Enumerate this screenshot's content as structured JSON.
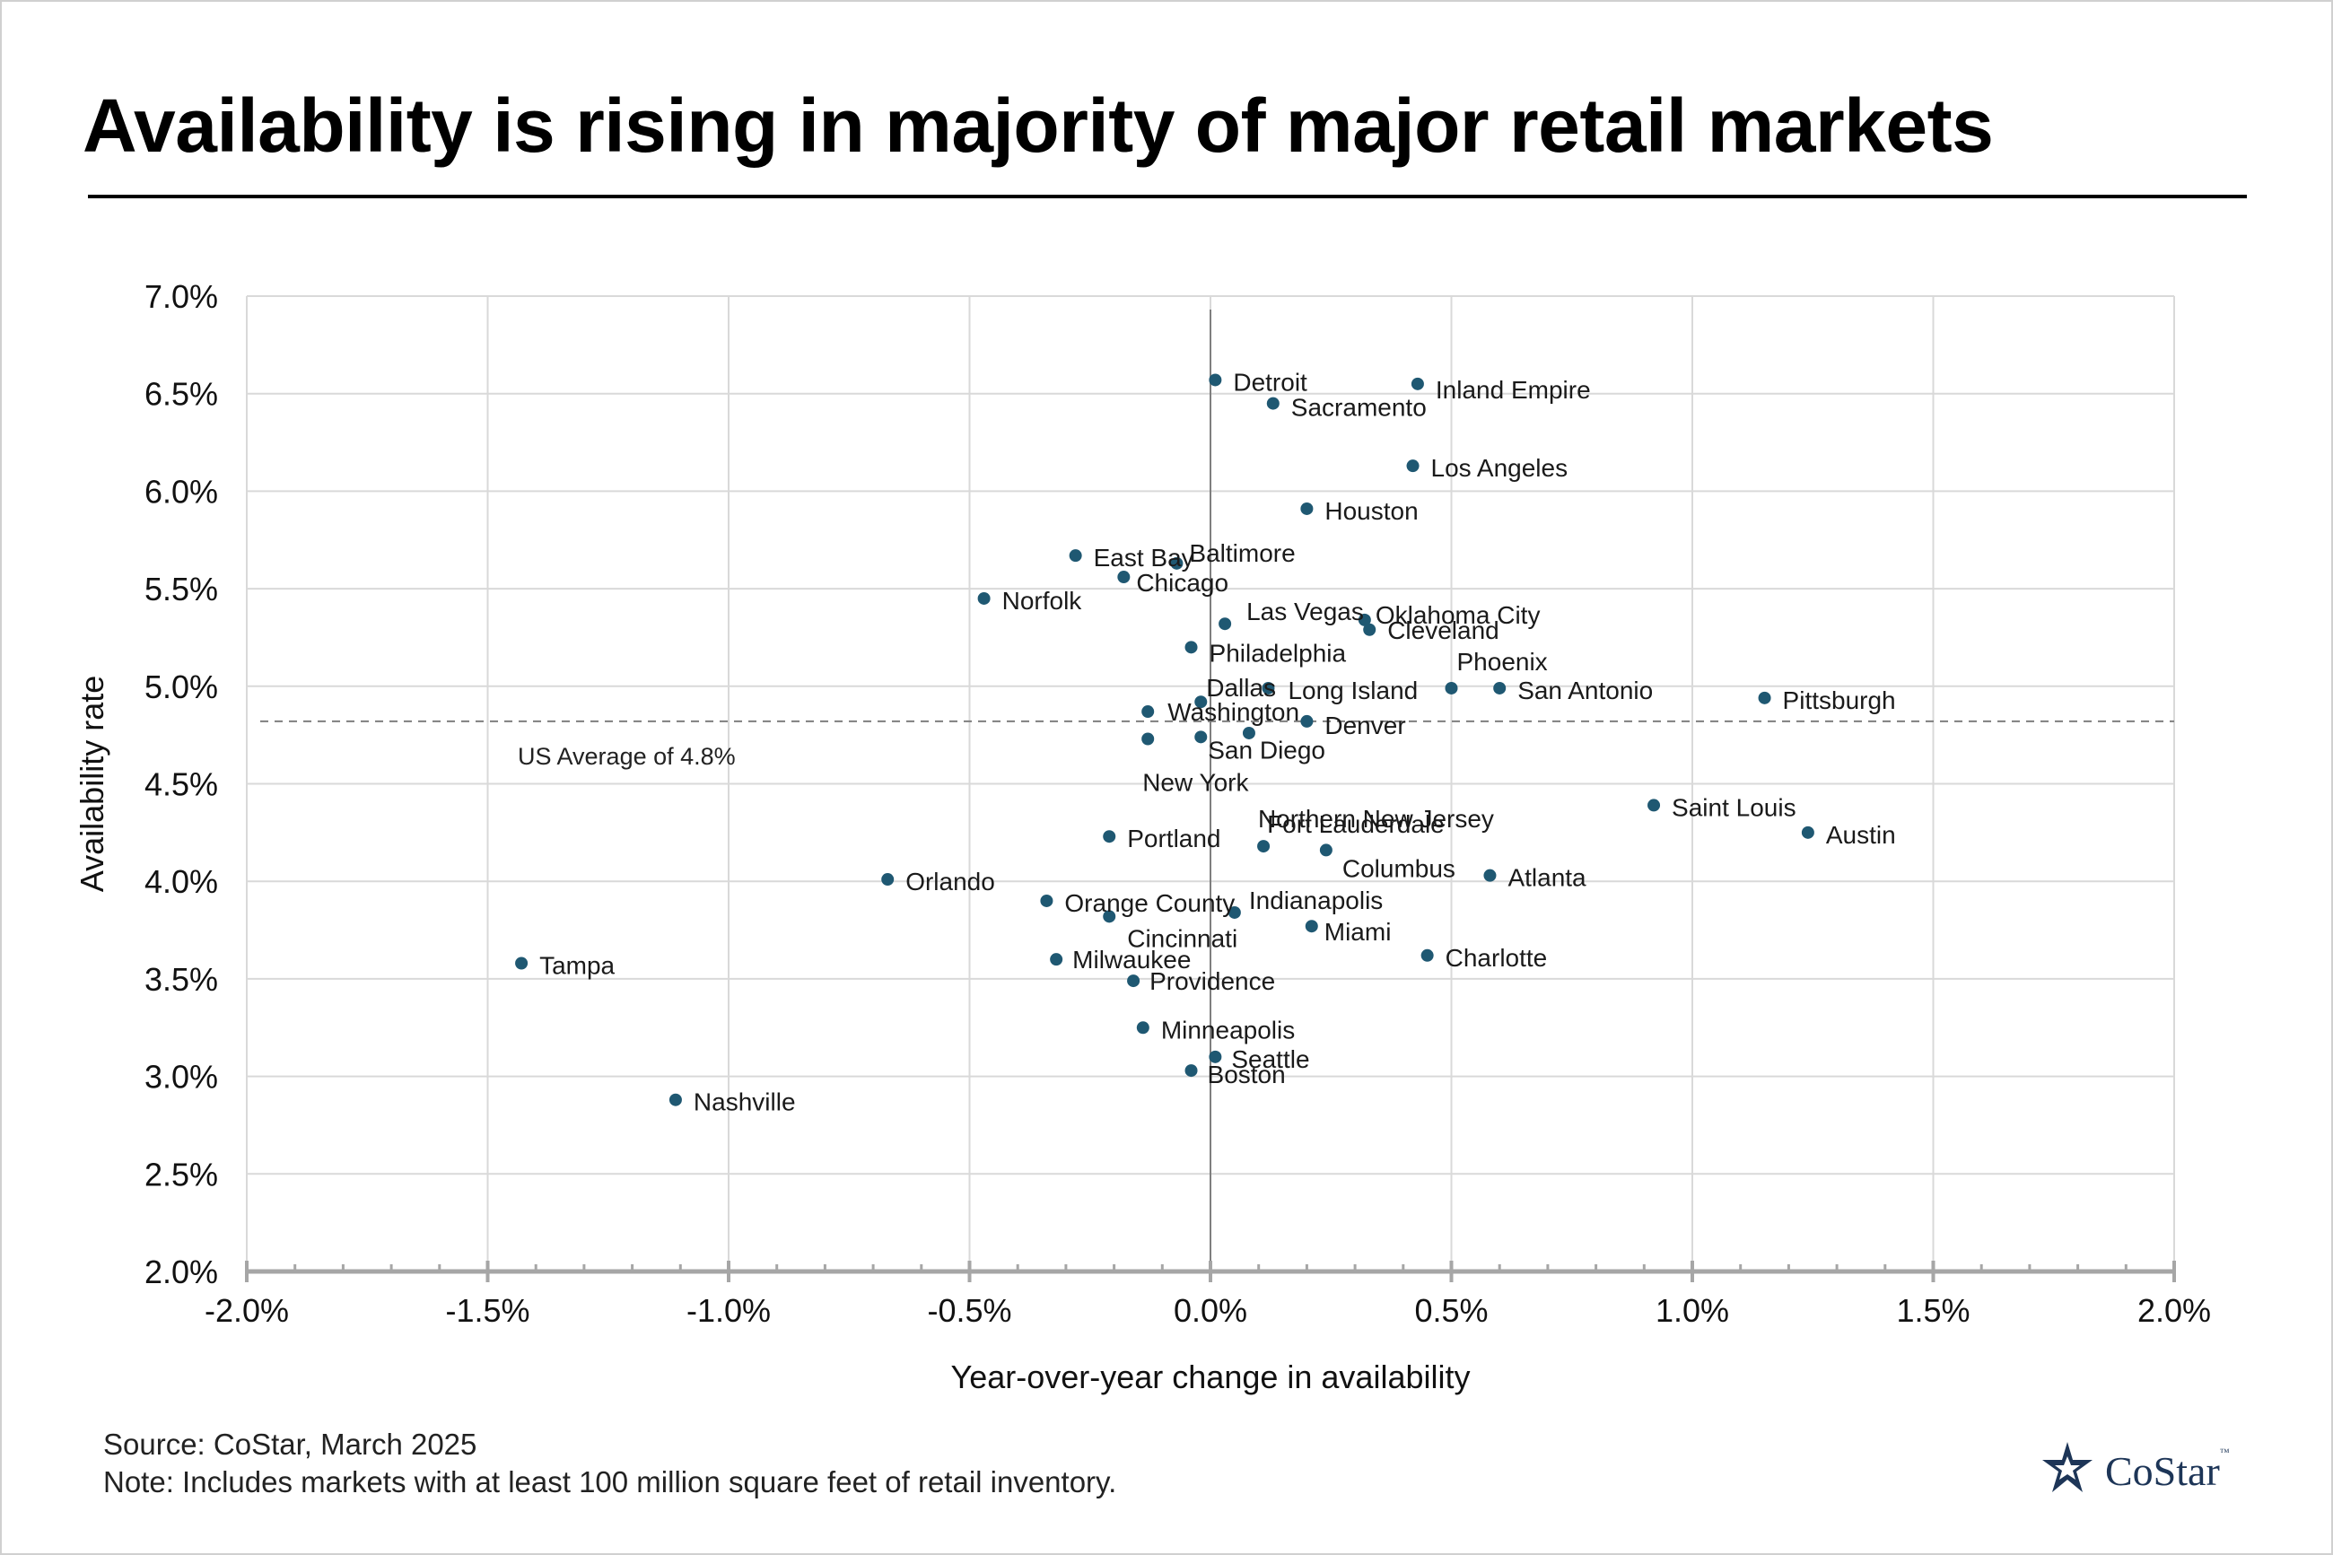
{
  "title": "Availability is rising in majority of major retail markets",
  "source": "Source: CoStar, March 2025",
  "note": "Note: Includes markets with at least 100 million square feet of retail inventory.",
  "logo": {
    "name": "CoStar",
    "tm": "™"
  },
  "colors": {
    "point": "#1f5872",
    "grid": "#d9d9d9",
    "axis": "#a6a6a6",
    "average_line": "#7f7f7f"
  },
  "chart_data": {
    "type": "scatter",
    "title": "Availability is rising in majority of major retail markets",
    "xlabel": "Year-over-year change in availability",
    "ylabel": "Availability rate",
    "xlim": [
      -2.0,
      2.0
    ],
    "ylim": [
      2.0,
      7.0
    ],
    "x_ticks": [
      -2.0,
      -1.5,
      -1.0,
      -0.5,
      0.0,
      0.5,
      1.0,
      1.5,
      2.0
    ],
    "x_tick_labels": [
      "-2.0%",
      "-1.5%",
      "-1.0%",
      "-0.5%",
      "0.0%",
      "0.5%",
      "1.0%",
      "1.5%",
      "2.0%"
    ],
    "y_ticks": [
      2.0,
      2.5,
      3.0,
      3.5,
      4.0,
      4.5,
      5.0,
      5.5,
      6.0,
      6.5,
      7.0
    ],
    "y_tick_labels": [
      "2.0%",
      "2.5%",
      "3.0%",
      "3.5%",
      "4.0%",
      "4.5%",
      "5.0%",
      "5.5%",
      "6.0%",
      "6.5%",
      "7.0%"
    ],
    "grid": true,
    "reference_line": {
      "y": 4.82,
      "label": "US Average of 4.8%"
    },
    "points": [
      {
        "label": "Detroit",
        "x": 0.01,
        "y": 6.57
      },
      {
        "label": "Inland Empire",
        "x": 0.43,
        "y": 6.55
      },
      {
        "label": "Sacramento",
        "x": 0.13,
        "y": 6.45
      },
      {
        "label": "Los Angeles",
        "x": 0.42,
        "y": 6.13
      },
      {
        "label": "Houston",
        "x": 0.2,
        "y": 5.91
      },
      {
        "label": "East Bay",
        "x": -0.28,
        "y": 5.67
      },
      {
        "label": "Baltimore",
        "x": -0.07,
        "y": 5.63
      },
      {
        "label": "Chicago",
        "x": -0.18,
        "y": 5.56
      },
      {
        "label": "Norfolk",
        "x": -0.47,
        "y": 5.45
      },
      {
        "label": "Las Vegas",
        "x": 0.03,
        "y": 5.32
      },
      {
        "label": "Oklahoma City",
        "x": 0.32,
        "y": 5.34
      },
      {
        "label": "Cleveland",
        "x": 0.33,
        "y": 5.29
      },
      {
        "label": "Philadelphia",
        "x": -0.04,
        "y": 5.2
      },
      {
        "label": "Phoenix",
        "x": 0.5,
        "y": 4.99
      },
      {
        "label": "San Antonio",
        "x": 0.6,
        "y": 4.99
      },
      {
        "label": "Pittsburgh",
        "x": 1.15,
        "y": 4.94
      },
      {
        "label": "Long Island",
        "x": 0.12,
        "y": 4.99
      },
      {
        "label": "Dallas",
        "x": -0.02,
        "y": 4.92
      },
      {
        "label": "Washington",
        "x": -0.13,
        "y": 4.87
      },
      {
        "label": "Denver",
        "x": 0.2,
        "y": 4.82
      },
      {
        "label": "New York",
        "x": -0.13,
        "y": 4.73
      },
      {
        "label": "San Diego",
        "x": -0.02,
        "y": 4.74
      },
      {
        "label": "Northern New Jersey",
        "x": 0.08,
        "y": 4.76
      },
      {
        "label": "Saint Louis",
        "x": 0.92,
        "y": 4.39
      },
      {
        "label": "Austin",
        "x": 1.24,
        "y": 4.25
      },
      {
        "label": "Portland",
        "x": -0.21,
        "y": 4.23
      },
      {
        "label": "Fort Lauderdale",
        "x": 0.11,
        "y": 4.18
      },
      {
        "label": "Columbus",
        "x": 0.24,
        "y": 4.16
      },
      {
        "label": "Atlanta",
        "x": 0.58,
        "y": 4.03
      },
      {
        "label": "Orlando",
        "x": -0.67,
        "y": 4.01
      },
      {
        "label": "Orange County",
        "x": -0.34,
        "y": 3.9
      },
      {
        "label": "Indianapolis",
        "x": 0.05,
        "y": 3.84
      },
      {
        "label": "Cincinnati",
        "x": -0.21,
        "y": 3.82
      },
      {
        "label": "Miami",
        "x": 0.21,
        "y": 3.77
      },
      {
        "label": "Charlotte",
        "x": 0.45,
        "y": 3.62
      },
      {
        "label": "Milwaukee",
        "x": -0.32,
        "y": 3.6
      },
      {
        "label": "Tampa",
        "x": -1.43,
        "y": 3.58
      },
      {
        "label": "Providence",
        "x": -0.16,
        "y": 3.49
      },
      {
        "label": "Minneapolis",
        "x": -0.14,
        "y": 3.25
      },
      {
        "label": "Seattle",
        "x": 0.01,
        "y": 3.1
      },
      {
        "label": "Boston",
        "x": -0.04,
        "y": 3.03
      },
      {
        "label": "Nashville",
        "x": -1.11,
        "y": 2.88
      }
    ]
  }
}
